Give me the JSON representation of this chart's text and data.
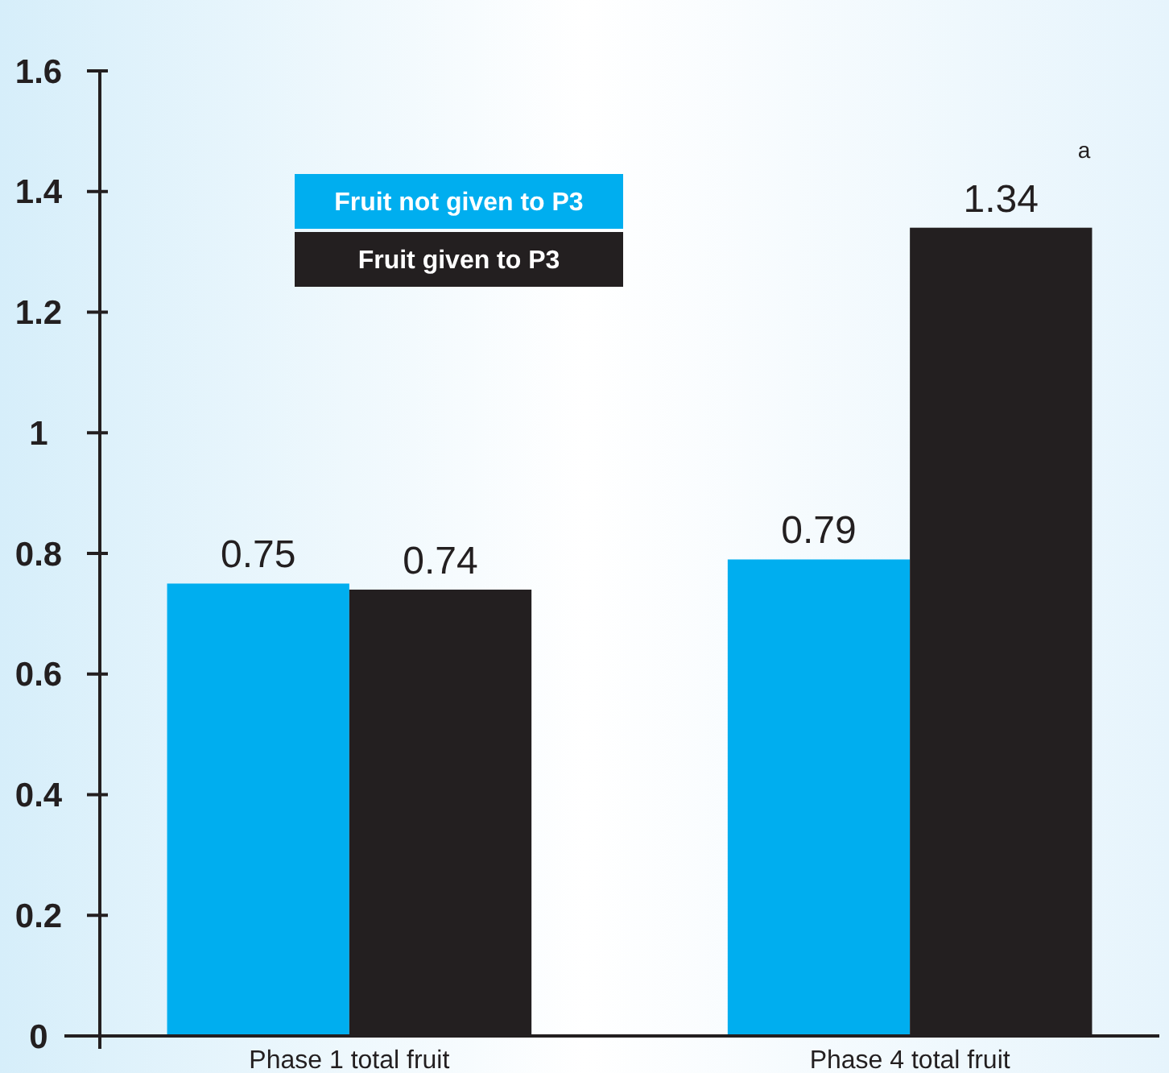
{
  "chart_data": {
    "type": "bar",
    "categories": [
      "Phase 1 total fruit",
      "Phase 4 total fruit"
    ],
    "series": [
      {
        "name": "Fruit not given to P3",
        "color": "#00aeef",
        "values": [
          0.75,
          0.79
        ]
      },
      {
        "name": "Fruit given to P3",
        "color": "#231f20",
        "values": [
          0.74,
          1.34
        ]
      }
    ],
    "ylim": [
      0,
      1.6
    ],
    "yticks": [
      0,
      0.2,
      0.4,
      0.6,
      0.8,
      1,
      1.2,
      1.4,
      1.6
    ],
    "data_labels": true,
    "legend": "top left",
    "grid": false,
    "annotations": [
      "a"
    ]
  }
}
